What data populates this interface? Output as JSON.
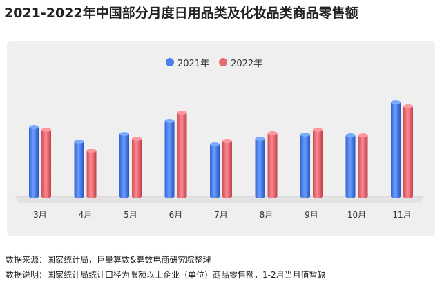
{
  "title": "2021-2022年中国部分月度日用品类及化妆品类商品零售额",
  "legend": {
    "items": [
      {
        "label": "2021年",
        "color": "#4d7ee8"
      },
      {
        "label": "2022年",
        "color": "#e66a72"
      }
    ],
    "position": "top-center"
  },
  "footer": {
    "source": "数据来源：国家统计局，巨量算数&算数电商研究院整理",
    "note": "数据说明：国家统计局统计口径为限额以上企业（单位）商品零售额，1-2月当月值暂缺"
  },
  "chart_data": {
    "type": "bar",
    "title": "2021-2022年中国部分月度日用品类及化妆品类商品零售额",
    "categories": [
      "3月",
      "4月",
      "5月",
      "6月",
      "7月",
      "8月",
      "9月",
      "10月",
      "11月"
    ],
    "series": [
      {
        "name": "2021年",
        "color": "#4d7ee8",
        "values": [
          100,
          79,
          90,
          109,
          75,
          83,
          89,
          88,
          136
        ]
      },
      {
        "name": "2022年",
        "color": "#e66a72",
        "values": [
          96,
          66,
          83,
          121,
          80,
          91,
          96,
          88,
          130
        ]
      }
    ],
    "ylim": [
      0,
      150
    ],
    "xlabel": "",
    "ylabel": "",
    "grid": false,
    "style": "3d-cylinder"
  }
}
